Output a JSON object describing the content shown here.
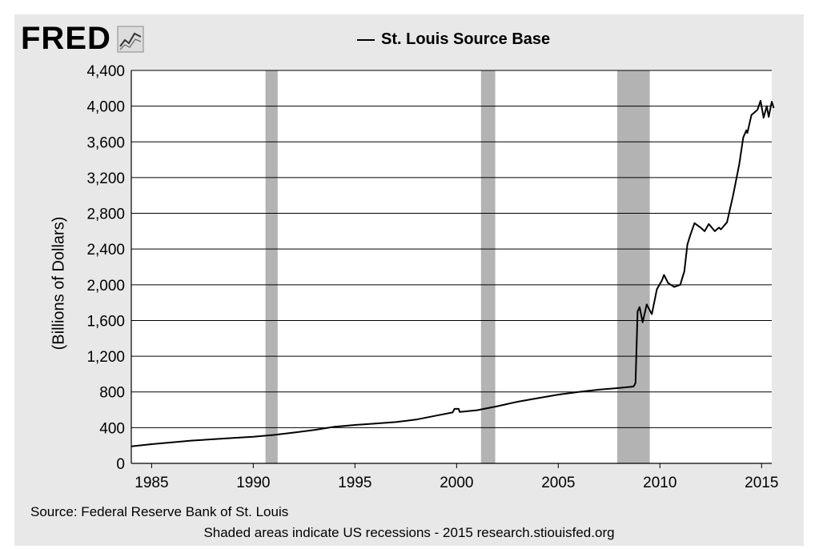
{
  "brand": {
    "logo_text": "FRED",
    "icon": "fred-chart-icon"
  },
  "chart_data": {
    "type": "line",
    "title": "",
    "xlabel": "",
    "ylabel": "(Billions of Dollars)",
    "xlim": [
      1984.0,
      2015.5
    ],
    "ylim": [
      0,
      4400
    ],
    "grid": "horizontal",
    "legend_placement": "top-center",
    "x_ticks": [
      1985,
      1990,
      1995,
      2000,
      2005,
      2010,
      2015
    ],
    "x_tick_labels": [
      "1985",
      "1990",
      "1995",
      "2000",
      "2005",
      "2010",
      "2015"
    ],
    "y_ticks": [
      0,
      400,
      800,
      1200,
      1600,
      2000,
      2400,
      2800,
      3200,
      3600,
      4000,
      4400
    ],
    "y_tick_labels": [
      "0",
      "400",
      "800",
      "1,200",
      "1,600",
      "2,000",
      "2,400",
      "2,800",
      "3,200",
      "3,600",
      "4,000",
      "4,400"
    ],
    "recessions": [
      {
        "start": 1990.6,
        "end": 1991.2
      },
      {
        "start": 2001.2,
        "end": 2001.9
      },
      {
        "start": 2007.9,
        "end": 2009.5
      }
    ],
    "series": [
      {
        "name": "St. Louis Source Base",
        "color": "#000000",
        "points": [
          [
            1984.0,
            190
          ],
          [
            1985.0,
            215
          ],
          [
            1986.0,
            235
          ],
          [
            1987.0,
            255
          ],
          [
            1988.0,
            270
          ],
          [
            1989.0,
            285
          ],
          [
            1990.0,
            298
          ],
          [
            1991.0,
            318
          ],
          [
            1992.0,
            345
          ],
          [
            1993.0,
            375
          ],
          [
            1994.0,
            410
          ],
          [
            1995.0,
            430
          ],
          [
            1996.0,
            445
          ],
          [
            1997.0,
            462
          ],
          [
            1998.0,
            490
          ],
          [
            1999.0,
            535
          ],
          [
            1999.8,
            570
          ],
          [
            1999.9,
            610
          ],
          [
            2000.1,
            610
          ],
          [
            2000.15,
            575
          ],
          [
            2001.0,
            595
          ],
          [
            2002.0,
            640
          ],
          [
            2003.0,
            690
          ],
          [
            2004.0,
            730
          ],
          [
            2005.0,
            770
          ],
          [
            2006.0,
            800
          ],
          [
            2007.0,
            825
          ],
          [
            2008.0,
            845
          ],
          [
            2008.7,
            860
          ],
          [
            2008.8,
            900
          ],
          [
            2008.9,
            1700
          ],
          [
            2009.0,
            1750
          ],
          [
            2009.15,
            1580
          ],
          [
            2009.35,
            1780
          ],
          [
            2009.6,
            1670
          ],
          [
            2009.85,
            1950
          ],
          [
            2010.0,
            2010
          ],
          [
            2010.1,
            2050
          ],
          [
            2010.2,
            2110
          ],
          [
            2010.4,
            2020
          ],
          [
            2010.7,
            1975
          ],
          [
            2011.0,
            2000
          ],
          [
            2011.2,
            2150
          ],
          [
            2011.35,
            2450
          ],
          [
            2011.5,
            2560
          ],
          [
            2011.7,
            2690
          ],
          [
            2012.0,
            2640
          ],
          [
            2012.2,
            2600
          ],
          [
            2012.4,
            2680
          ],
          [
            2012.7,
            2600
          ],
          [
            2012.9,
            2640
          ],
          [
            2013.0,
            2620
          ],
          [
            2013.3,
            2700
          ],
          [
            2013.6,
            3000
          ],
          [
            2013.9,
            3350
          ],
          [
            2014.1,
            3650
          ],
          [
            2014.25,
            3730
          ],
          [
            2014.3,
            3700
          ],
          [
            2014.5,
            3900
          ],
          [
            2014.8,
            3960
          ],
          [
            2014.95,
            4060
          ],
          [
            2015.1,
            3870
          ],
          [
            2015.25,
            4000
          ],
          [
            2015.35,
            3880
          ],
          [
            2015.5,
            4050
          ],
          [
            2015.6,
            3980
          ]
        ]
      }
    ]
  },
  "footer": {
    "source": "Source: Federal Reserve Bank of St. Louis",
    "note": "Shaded areas indicate US recessions - 2015 research.stiouisfed.org"
  }
}
